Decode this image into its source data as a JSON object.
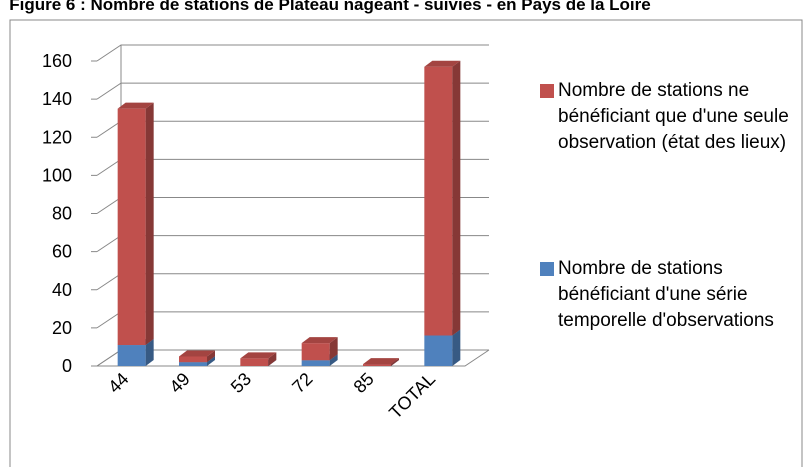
{
  "chart_data": {
    "type": "bar3d_stacked",
    "title": "Figure 6 : Nombre de stations de Plateau nageant - suivies - en Pays de la Loire",
    "categories": [
      "44",
      "49",
      "53",
      "72",
      "85",
      "TOTAL"
    ],
    "series": [
      {
        "name": "Nombre de stations bénéficiant d'une série temporelle d'observations",
        "color": "#4f81bd",
        "values": [
          11,
          2,
          0,
          3,
          0,
          16
        ]
      },
      {
        "name": "Nombre de stations ne bénéficiant que d'une seule observation (état des lieux)",
        "color": "#c0504d",
        "values": [
          124,
          3,
          4,
          9,
          1,
          141
        ]
      }
    ],
    "ylim": [
      0,
      160
    ],
    "yticks": [
      0,
      20,
      40,
      60,
      80,
      100,
      120,
      140,
      160
    ],
    "grid": true
  }
}
